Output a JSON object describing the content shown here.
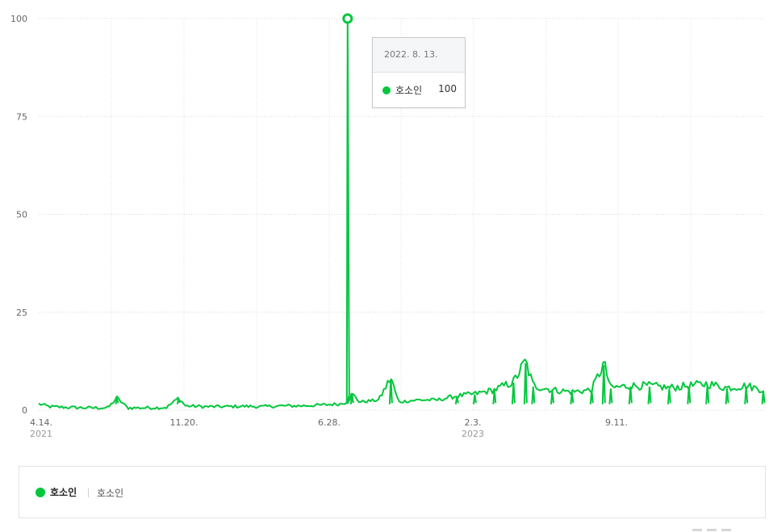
{
  "chart_data": {
    "type": "line",
    "title": "",
    "xlabel": "",
    "ylabel": "",
    "ylim": [
      0,
      100
    ],
    "y_ticks": [
      "0",
      "25",
      "50",
      "75",
      "100"
    ],
    "x_tick_labels": [
      {
        "label": "4.14.",
        "year": "2021"
      },
      {
        "label": "11.20.",
        "year": ""
      },
      {
        "label": "6.28.",
        "year": ""
      },
      {
        "label": "2.3.",
        "year": "2023"
      },
      {
        "label": "9.11.",
        "year": ""
      }
    ],
    "x_range": [
      "2021-04-14",
      "2024-05-28"
    ],
    "grid": true,
    "series": [
      {
        "name": "호소인",
        "color": "#00c73c",
        "points": [
          [
            "2021-04-14",
            1.5
          ],
          [
            "2021-05-01",
            0.8
          ],
          [
            "2021-06-01",
            0.6
          ],
          [
            "2021-07-01",
            0.5
          ],
          [
            "2021-08-01",
            0.5
          ],
          [
            "2021-08-15",
            3.0
          ],
          [
            "2021-09-01",
            0.5
          ],
          [
            "2021-10-01",
            0.5
          ],
          [
            "2021-11-01",
            0.6
          ],
          [
            "2021-11-20",
            3.0
          ],
          [
            "2021-12-01",
            1.0
          ],
          [
            "2022-01-01",
            0.8
          ],
          [
            "2022-02-01",
            0.8
          ],
          [
            "2022-03-01",
            0.9
          ],
          [
            "2022-04-01",
            0.8
          ],
          [
            "2022-05-01",
            1.0
          ],
          [
            "2022-06-01",
            1.0
          ],
          [
            "2022-07-01",
            1.2
          ],
          [
            "2022-08-01",
            1.5
          ],
          [
            "2022-08-13",
            100
          ],
          [
            "2022-08-20",
            4.0
          ],
          [
            "2022-09-01",
            2.0
          ],
          [
            "2022-10-01",
            2.5
          ],
          [
            "2022-10-20",
            8.0
          ],
          [
            "2022-11-01",
            2.0
          ],
          [
            "2022-12-01",
            2.5
          ],
          [
            "2023-01-01",
            2.5
          ],
          [
            "2023-02-01",
            3.5
          ],
          [
            "2023-03-01",
            4.0
          ],
          [
            "2023-04-01",
            5.0
          ],
          [
            "2023-05-01",
            7.0
          ],
          [
            "2023-05-20",
            12.0
          ],
          [
            "2023-06-01",
            6.0
          ],
          [
            "2023-07-01",
            5.0
          ],
          [
            "2023-08-01",
            4.5
          ],
          [
            "2023-09-01",
            5.0
          ],
          [
            "2023-09-20",
            11.5
          ],
          [
            "2023-10-01",
            5.5
          ],
          [
            "2023-11-01",
            6.0
          ],
          [
            "2023-12-01",
            6.0
          ],
          [
            "2024-01-01",
            5.5
          ],
          [
            "2024-02-01",
            6.0
          ],
          [
            "2024-03-01",
            6.5
          ],
          [
            "2024-04-01",
            5.5
          ],
          [
            "2024-05-01",
            6.0
          ],
          [
            "2024-05-28",
            5.0
          ]
        ]
      }
    ],
    "highlight": {
      "date": "2022-08-13",
      "value": 100
    }
  },
  "tooltip": {
    "date_label": "2022. 8. 13.",
    "series_name": "호소인",
    "value": "100"
  },
  "legend": {
    "series_name": "호소인",
    "sub_label": "호소인",
    "color": "#00c73c"
  }
}
